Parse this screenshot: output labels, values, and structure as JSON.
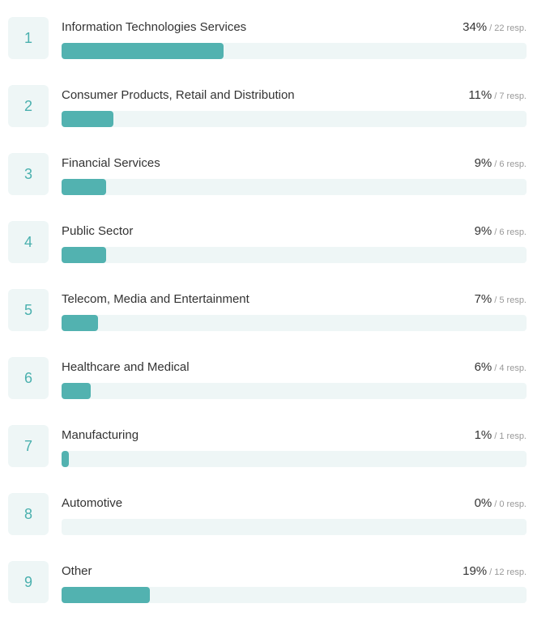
{
  "colors": {
    "accent": "#52b2b0",
    "track": "#eef6f6",
    "number": "#4ab0ae"
  },
  "chart_data": {
    "type": "bar",
    "orientation": "horizontal",
    "title": "",
    "categories": [
      "Information Technologies Services",
      "Consumer Products, Retail and Distribution",
      "Financial Services",
      "Public Sector",
      "Telecom, Media and Entertainment",
      "Healthcare and Medical",
      "Manufacturing",
      "Automotive",
      "Other"
    ],
    "values": [
      34,
      11,
      9,
      9,
      7,
      6,
      1,
      0,
      19
    ],
    "responses": [
      22,
      7,
      6,
      6,
      5,
      4,
      1,
      0,
      12
    ],
    "unit": "%",
    "xlim": [
      0,
      100
    ]
  },
  "items": [
    {
      "rank": "1",
      "label": "Information Technologies Services",
      "pct": "34%",
      "resp": "/ 22 resp.",
      "fill": 200
    },
    {
      "rank": "2",
      "label": "Consumer Products, Retail and Distribution",
      "pct": "11%",
      "resp": "/ 7 resp.",
      "fill": 64
    },
    {
      "rank": "3",
      "label": "Financial Services",
      "pct": "9%",
      "resp": "/ 6 resp.",
      "fill": 55
    },
    {
      "rank": "4",
      "label": "Public Sector",
      "pct": "9%",
      "resp": "/ 6 resp.",
      "fill": 55
    },
    {
      "rank": "5",
      "label": "Telecom, Media and Entertainment",
      "pct": "7%",
      "resp": "/ 5 resp.",
      "fill": 45
    },
    {
      "rank": "6",
      "label": "Healthcare and Medical",
      "pct": "6%",
      "resp": "/ 4 resp.",
      "fill": 36
    },
    {
      "rank": "7",
      "label": "Manufacturing",
      "pct": "1%",
      "resp": "/ 1 resp.",
      "fill": 9
    },
    {
      "rank": "8",
      "label": "Automotive",
      "pct": "0%",
      "resp": "/ 0 resp.",
      "fill": 0
    },
    {
      "rank": "9",
      "label": "Other",
      "pct": "19%",
      "resp": "/ 12 resp.",
      "fill": 109
    }
  ]
}
